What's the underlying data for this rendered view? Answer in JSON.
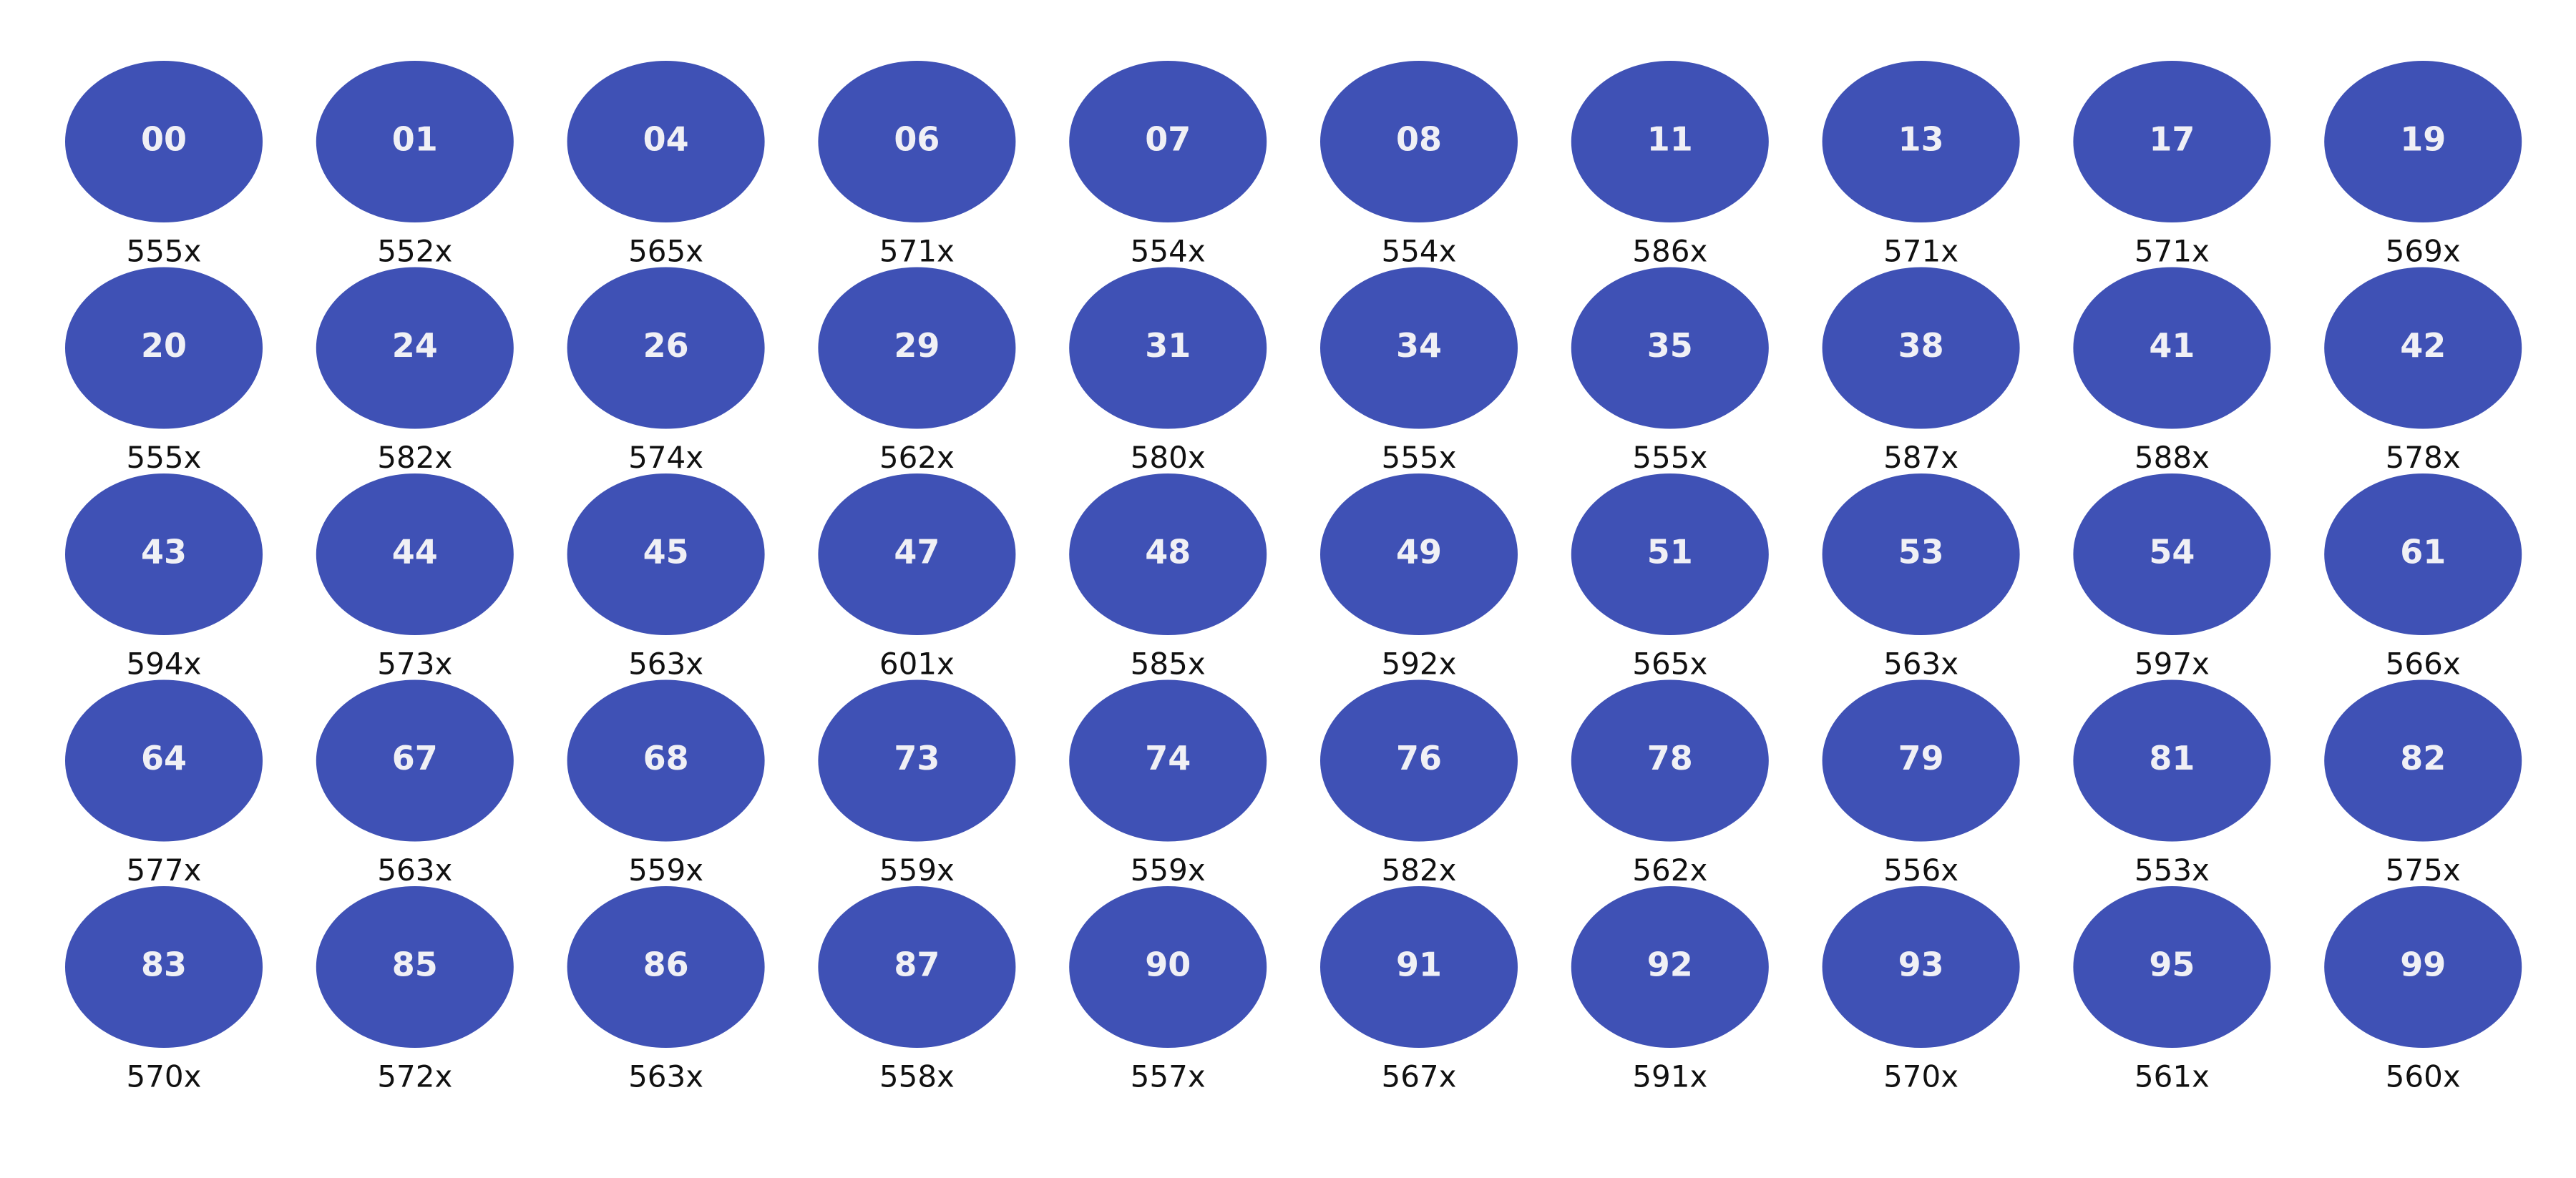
{
  "balls": [
    {
      "number": "00",
      "count": "555x"
    },
    {
      "number": "01",
      "count": "552x"
    },
    {
      "number": "04",
      "count": "565x"
    },
    {
      "number": "06",
      "count": "571x"
    },
    {
      "number": "07",
      "count": "554x"
    },
    {
      "number": "08",
      "count": "554x"
    },
    {
      "number": "11",
      "count": "586x"
    },
    {
      "number": "13",
      "count": "571x"
    },
    {
      "number": "17",
      "count": "571x"
    },
    {
      "number": "19",
      "count": "569x"
    },
    {
      "number": "20",
      "count": "555x"
    },
    {
      "number": "24",
      "count": "582x"
    },
    {
      "number": "26",
      "count": "574x"
    },
    {
      "number": "29",
      "count": "562x"
    },
    {
      "number": "31",
      "count": "580x"
    },
    {
      "number": "34",
      "count": "555x"
    },
    {
      "number": "35",
      "count": "555x"
    },
    {
      "number": "38",
      "count": "587x"
    },
    {
      "number": "41",
      "count": "588x"
    },
    {
      "number": "42",
      "count": "578x"
    },
    {
      "number": "43",
      "count": "594x"
    },
    {
      "number": "44",
      "count": "573x"
    },
    {
      "number": "45",
      "count": "563x"
    },
    {
      "number": "47",
      "count": "601x"
    },
    {
      "number": "48",
      "count": "585x"
    },
    {
      "number": "49",
      "count": "592x"
    },
    {
      "number": "51",
      "count": "565x"
    },
    {
      "number": "53",
      "count": "563x"
    },
    {
      "number": "54",
      "count": "597x"
    },
    {
      "number": "61",
      "count": "566x"
    },
    {
      "number": "64",
      "count": "577x"
    },
    {
      "number": "67",
      "count": "563x"
    },
    {
      "number": "68",
      "count": "559x"
    },
    {
      "number": "73",
      "count": "559x"
    },
    {
      "number": "74",
      "count": "559x"
    },
    {
      "number": "76",
      "count": "582x"
    },
    {
      "number": "78",
      "count": "562x"
    },
    {
      "number": "79",
      "count": "556x"
    },
    {
      "number": "81",
      "count": "553x"
    },
    {
      "number": "82",
      "count": "575x"
    },
    {
      "number": "83",
      "count": "570x"
    },
    {
      "number": "85",
      "count": "572x"
    },
    {
      "number": "86",
      "count": "563x"
    },
    {
      "number": "87",
      "count": "558x"
    },
    {
      "number": "90",
      "count": "557x"
    },
    {
      "number": "91",
      "count": "567x"
    },
    {
      "number": "92",
      "count": "591x"
    },
    {
      "number": "93",
      "count": "570x"
    },
    {
      "number": "95",
      "count": "561x"
    },
    {
      "number": "99",
      "count": "560x"
    }
  ]
}
